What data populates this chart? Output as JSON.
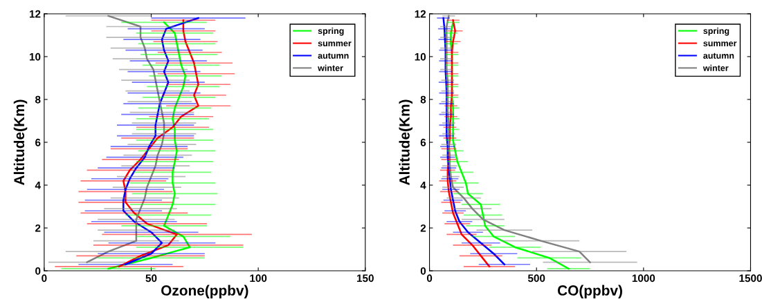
{
  "chart_data": [
    {
      "type": "line",
      "xlabel": "Ozone(ppbv)",
      "ylabel": "Altitude(Km)",
      "xlim": [
        0,
        150
      ],
      "xticks": [
        0,
        50,
        100,
        150
      ],
      "ylim": [
        0,
        12
      ],
      "yticks": [
        0,
        2,
        4,
        6,
        8,
        10,
        12
      ],
      "legend": "top right",
      "marker": "none",
      "line_style": "solid",
      "series": [
        {
          "name": "spring",
          "color": "#00ff00",
          "values": [
            0.1,
            0.6,
            1.1,
            1.6,
            2.1,
            2.6,
            3.1,
            3.6,
            4.1,
            4.6,
            5.1,
            5.6,
            6.1,
            6.6,
            7.1,
            7.6,
            8.1,
            8.6,
            9.1,
            9.6,
            10.1,
            10.6,
            11.1,
            11.6
          ],
          "x": [
            30,
            50,
            68,
            65,
            56,
            58,
            60,
            61,
            60,
            60,
            61,
            62,
            61,
            61,
            60,
            61,
            63,
            65,
            66,
            64,
            63,
            62,
            61,
            56
          ],
          "xerrors": [
            22,
            25,
            25,
            22,
            20,
            20,
            20,
            20,
            20,
            18,
            18,
            18,
            18,
            18,
            17,
            17,
            17,
            17,
            17,
            18,
            18,
            18,
            18,
            20
          ]
        },
        {
          "name": "summer",
          "color": "#ff0000",
          "values": [
            0.2,
            0.7,
            1.2,
            1.7,
            2.2,
            2.7,
            3.2,
            3.7,
            4.2,
            4.7,
            5.2,
            5.7,
            6.2,
            6.7,
            7.2,
            7.7,
            8.2,
            8.7,
            9.2,
            9.7,
            10.2,
            10.7,
            11.2,
            11.7
          ],
          "x": [
            35,
            45,
            58,
            62,
            48,
            42,
            38,
            38,
            37,
            40,
            45,
            49,
            53,
            60,
            64,
            72,
            70,
            72,
            71,
            70,
            68,
            66,
            65,
            65
          ],
          "xerrors": [
            30,
            30,
            35,
            35,
            28,
            25,
            22,
            22,
            20,
            20,
            18,
            18,
            17,
            17,
            15,
            15,
            15,
            15,
            18,
            18,
            15,
            15,
            15,
            15
          ]
        },
        {
          "name": "autumn",
          "color": "#0000ff",
          "values": [
            0.3,
            0.8,
            1.3,
            1.8,
            2.3,
            2.8,
            3.3,
            3.8,
            4.3,
            4.8,
            5.3,
            5.8,
            6.3,
            6.8,
            7.3,
            7.8,
            8.3,
            8.8,
            9.3,
            9.8,
            10.3,
            10.8,
            11.3,
            11.8
          ],
          "x": [
            38,
            50,
            55,
            50,
            42,
            37,
            37,
            38,
            40,
            43,
            47,
            49,
            52,
            52,
            53,
            54,
            56,
            58,
            56,
            58,
            56,
            55,
            57,
            72
          ],
          "xerrors": [
            22,
            25,
            25,
            22,
            20,
            18,
            18,
            18,
            18,
            18,
            18,
            18,
            18,
            18,
            17,
            17,
            17,
            17,
            17,
            18,
            18,
            18,
            18,
            22
          ]
        },
        {
          "name": "winter",
          "color": "#808080",
          "values": [
            0.4,
            0.9,
            1.4,
            1.9,
            2.4,
            2.9,
            3.4,
            3.9,
            4.4,
            4.9,
            5.4,
            5.9,
            6.4,
            6.9,
            7.4,
            7.9,
            8.4,
            8.9,
            9.4,
            9.9,
            10.4,
            10.9,
            11.4,
            11.9
          ],
          "x": [
            20,
            30,
            43,
            43,
            43,
            45,
            47,
            48,
            50,
            52,
            53,
            55,
            56,
            56,
            55,
            54,
            53,
            52,
            51,
            48,
            47,
            45,
            45,
            30
          ],
          "xerrors": [
            18,
            20,
            20,
            18,
            18,
            17,
            16,
            16,
            16,
            16,
            16,
            16,
            15,
            15,
            15,
            15,
            15,
            16,
            16,
            16,
            16,
            16,
            16,
            20
          ]
        }
      ]
    },
    {
      "type": "line",
      "xlabel": "CO(ppbv)",
      "ylabel": "Altitude(Km)",
      "xlim": [
        0,
        1500
      ],
      "xticks": [
        0,
        500,
        1000,
        1500
      ],
      "ylim": [
        0,
        12
      ],
      "yticks": [
        0,
        2,
        4,
        6,
        8,
        10,
        12
      ],
      "legend": "top right",
      "marker": "none",
      "line_style": "solid",
      "series": [
        {
          "name": "spring",
          "color": "#00ff00",
          "values": [
            0.1,
            0.6,
            1.1,
            1.6,
            2.1,
            2.6,
            3.1,
            3.6,
            4.1,
            4.6,
            5.1,
            5.6,
            6.1,
            6.6,
            7.1,
            7.6,
            8.1,
            8.6,
            9.1,
            9.6,
            10.1,
            10.6,
            11.1,
            11.6
          ],
          "x": [
            650,
            560,
            400,
            300,
            260,
            250,
            240,
            180,
            170,
            150,
            130,
            120,
            110,
            110,
            110,
            110,
            105,
            105,
            105,
            105,
            105,
            100,
            100,
            110
          ],
          "xerrors": [
            100,
            150,
            120,
            100,
            90,
            90,
            90,
            70,
            60,
            55,
            50,
            40,
            35,
            30,
            30,
            30,
            30,
            30,
            30,
            30,
            30,
            30,
            30,
            30
          ]
        },
        {
          "name": "summer",
          "color": "#ff0000",
          "values": [
            0.2,
            0.7,
            1.2,
            1.7,
            2.2,
            2.7,
            3.2,
            3.7,
            4.2,
            4.7,
            5.2,
            5.7,
            6.2,
            6.7,
            7.2,
            7.7,
            8.2,
            8.7,
            9.2,
            9.7,
            10.2,
            10.7,
            11.2,
            11.7
          ],
          "x": [
            280,
            240,
            200,
            150,
            130,
            110,
            100,
            90,
            85,
            85,
            90,
            90,
            95,
            95,
            100,
            100,
            105,
            105,
            105,
            105,
            105,
            110,
            120,
            110
          ],
          "xerrors": [
            120,
            100,
            90,
            70,
            60,
            50,
            45,
            40,
            40,
            35,
            35,
            35,
            30,
            30,
            30,
            30,
            30,
            30,
            30,
            30,
            30,
            35,
            35,
            30
          ]
        },
        {
          "name": "autumn",
          "color": "#0000ff",
          "values": [
            0.3,
            0.8,
            1.3,
            1.8,
            2.3,
            2.8,
            3.3,
            3.8,
            4.3,
            4.8,
            5.3,
            5.8,
            6.3,
            6.8,
            7.3,
            7.8,
            8.3,
            8.8,
            9.3,
            9.8,
            10.3,
            10.8,
            11.3,
            11.8
          ],
          "x": [
            350,
            300,
            240,
            180,
            140,
            120,
            110,
            100,
            95,
            90,
            85,
            85,
            80,
            80,
            80,
            80,
            80,
            78,
            75,
            75,
            75,
            72,
            70,
            65
          ],
          "xerrors": [
            120,
            110,
            90,
            70,
            60,
            50,
            45,
            40,
            40,
            35,
            35,
            35,
            35,
            35,
            35,
            35,
            35,
            35,
            30,
            30,
            30,
            30,
            30,
            30
          ]
        },
        {
          "name": "winter",
          "color": "#808080",
          "values": [
            0.4,
            0.9,
            1.4,
            1.9,
            2.4,
            2.9,
            3.4,
            3.9,
            4.4,
            4.9,
            5.4,
            5.9,
            6.4,
            6.9,
            7.4,
            7.9,
            8.4,
            8.9,
            9.4,
            9.9,
            10.4,
            10.9,
            11.4,
            11.9
          ],
          "x": [
            750,
            700,
            520,
            350,
            250,
            200,
            160,
            110,
            100,
            95,
            95,
            90,
            90,
            90,
            85,
            85,
            85,
            85,
            80,
            80,
            80,
            80,
            80,
            90
          ],
          "xerrors": [
            220,
            220,
            180,
            130,
            100,
            90,
            80,
            50,
            40,
            35,
            35,
            35,
            30,
            30,
            30,
            30,
            30,
            30,
            30,
            30,
            30,
            30,
            30,
            30
          ]
        }
      ]
    }
  ]
}
